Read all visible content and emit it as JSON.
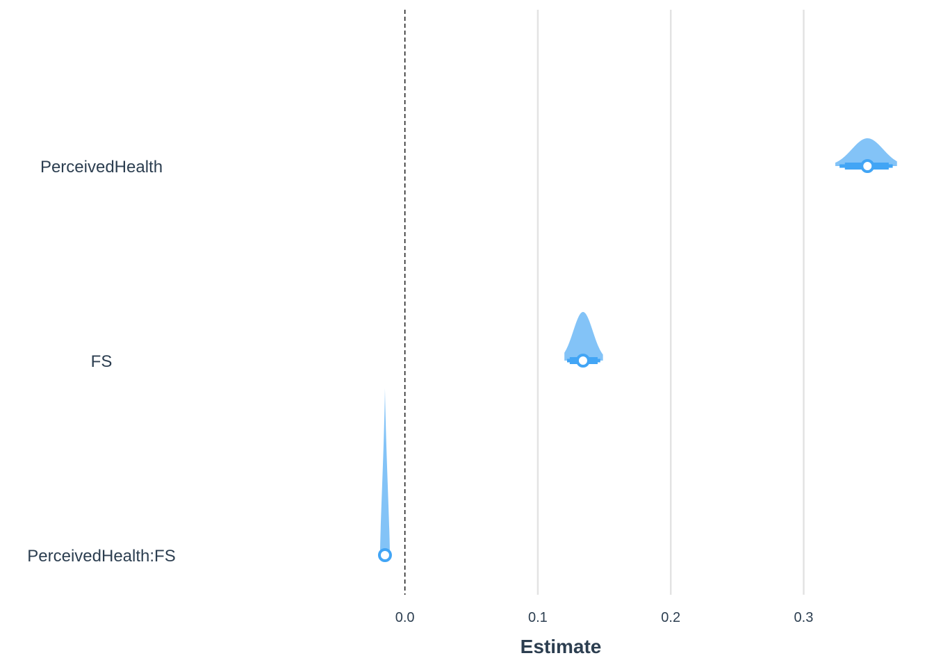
{
  "chart_data": {
    "type": "forest",
    "xlabel": "Estimate",
    "xlim": [
      -0.153,
      0.374
    ],
    "xticks": [
      0.0,
      0.1,
      0.2,
      0.3
    ],
    "xtick_labels": [
      "0.0",
      "0.1",
      "0.2",
      "0.3"
    ],
    "grid": "vertical major lines",
    "reference_line": 0.0,
    "terms": [
      {
        "label": "PerceivedHealth",
        "estimate": 0.348,
        "ci_inner": [
          0.331,
          0.364
        ],
        "ci_outer": [
          0.327,
          0.367
        ],
        "density_height": 0.4
      },
      {
        "label": "FS",
        "estimate": 0.134,
        "ci_inner": [
          0.124,
          0.145
        ],
        "ci_outer": [
          0.122,
          0.147
        ],
        "density_height": 0.7
      },
      {
        "label": "PerceivedHealth:FS",
        "estimate": -0.015,
        "ci_inner": [
          -0.016,
          -0.014
        ],
        "ci_outer": [
          -0.017,
          -0.013
        ],
        "density_height": 2.4
      }
    ],
    "colors": {
      "density": "#7cc0f7",
      "interval": "#42a5f5",
      "point_fill": "#ffffff",
      "point_stroke": "#42a5f5",
      "grid": "#e3e3e3",
      "reference": "#222222",
      "text": "#2c3e50"
    }
  }
}
